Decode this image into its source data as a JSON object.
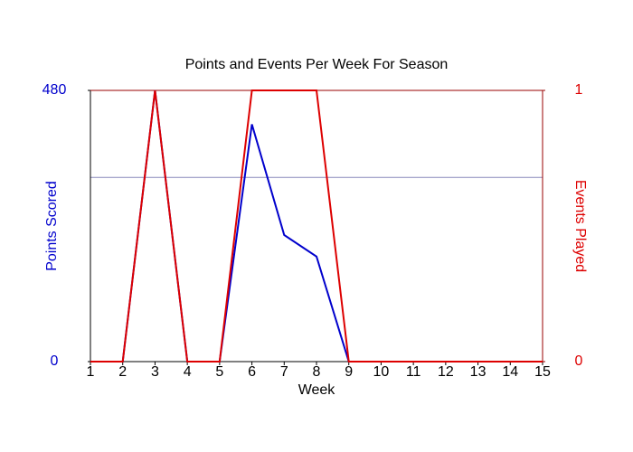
{
  "chart_data": {
    "type": "line",
    "title": "Points and Events Per Week For Season",
    "x_label": "Week",
    "y_label": "Points Scored",
    "y2_label": "Events Played",
    "x": [
      1,
      2,
      3,
      4,
      5,
      6,
      7,
      8,
      9,
      10,
      11,
      12,
      13,
      14,
      15
    ],
    "xlim": [
      1,
      15
    ],
    "xticks": [
      1,
      2,
      3,
      4,
      5,
      6,
      7,
      8,
      9,
      10,
      11,
      12,
      13,
      14,
      15
    ],
    "ylim": [
      0,
      480
    ],
    "yticks": [
      0,
      480
    ],
    "y_color": "#0000cc",
    "y2lim": [
      0,
      1
    ],
    "y2ticks": [
      0,
      1
    ],
    "y2_color": "#dd0000",
    "reference_line": {
      "value": 326,
      "color": "#8888bb"
    },
    "series": [
      {
        "name": "Points Scored",
        "color": "#0000cc",
        "values": [
          0,
          0,
          480,
          0,
          0,
          420,
          224,
          186,
          0,
          0,
          0,
          0,
          0,
          0,
          0
        ]
      },
      {
        "name": "Events Played",
        "color": "#dd0000",
        "axis": "y2",
        "values": [
          0,
          0,
          1,
          0,
          0,
          1,
          1,
          1,
          0,
          0,
          0,
          0,
          0,
          0,
          0
        ]
      }
    ]
  }
}
